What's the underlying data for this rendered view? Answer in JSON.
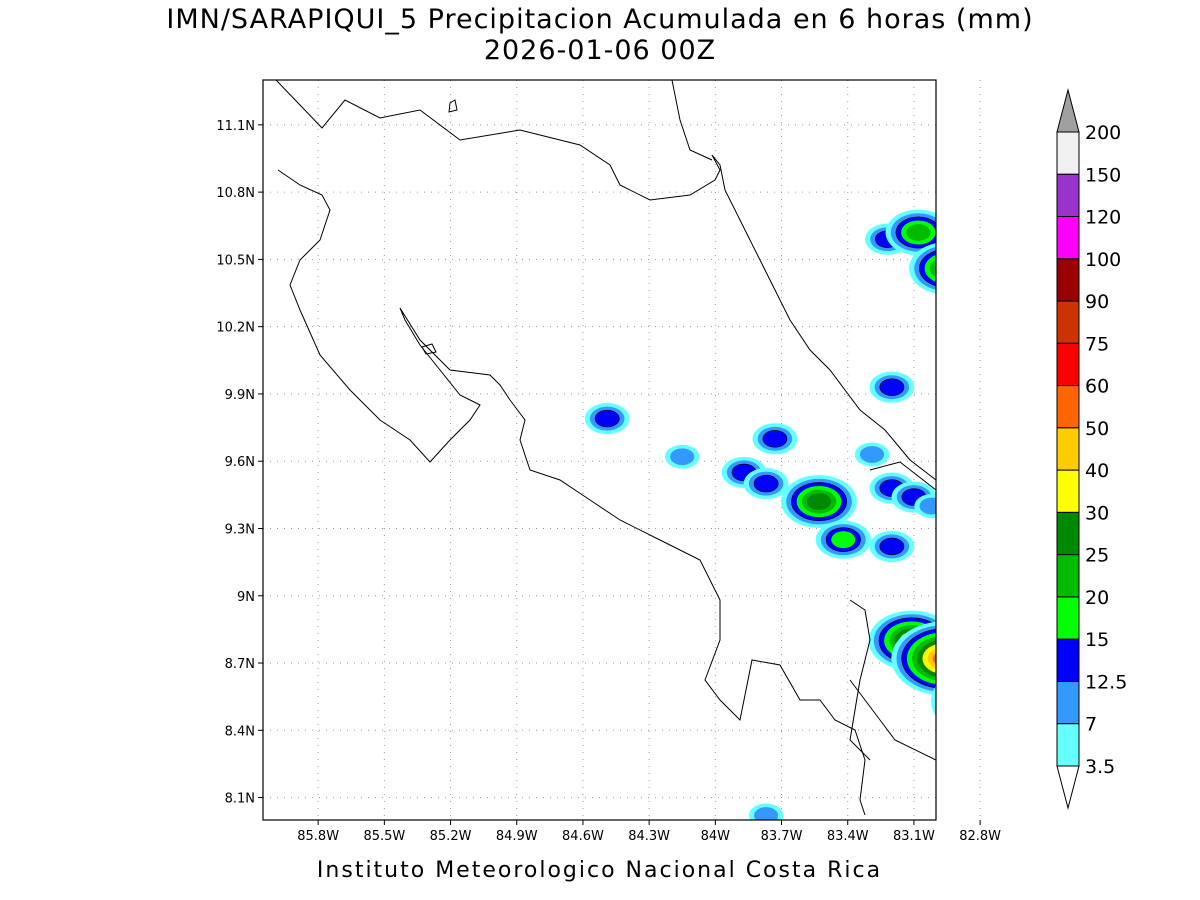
{
  "map": {
    "title": "IMN/SARAPIQUI_5 Precipitacion Acumulada en 6 horas (mm)",
    "subtitle": "2026-01-06 00Z",
    "footer": "Instituto Meteorologico Nacional Costa Rica",
    "lon_ticks": [
      "85.8W",
      "85.5W",
      "85.2W",
      "84.9W",
      "84.6W",
      "84.3W",
      "84W",
      "83.7W",
      "83.4W",
      "83.1W",
      "82.8W"
    ],
    "lat_ticks": [
      "11.1N",
      "10.8N",
      "10.5N",
      "10.2N",
      "9.9N",
      "9.6N",
      "9.3N",
      "9N",
      "8.7N",
      "8.4N",
      "8.1N"
    ],
    "lon_range": [
      -86.05,
      -83.0
    ],
    "lat_range": [
      8.0,
      11.3
    ],
    "grid": "dotted"
  },
  "legend": {
    "labels": [
      "200",
      "150",
      "120",
      "100",
      "90",
      "75",
      "60",
      "50",
      "40",
      "30",
      "25",
      "20",
      "15",
      "12.5",
      "7",
      "3.5"
    ],
    "colors": [
      "#a0a0a0",
      "#f0f0f0",
      "#9933cc",
      "#ff00ff",
      "#990000",
      "#cc3300",
      "#ff0000",
      "#ff6600",
      "#ffcc00",
      "#ffff00",
      "#008800",
      "#00bb00",
      "#00ff00",
      "#0000ff",
      "#3399ff",
      "#66ffff",
      "#ffffff"
    ]
  },
  "precip_cells": [
    {
      "lon": -83.22,
      "lat": 10.59,
      "level": 3
    },
    {
      "lon": -83.08,
      "lat": 10.62,
      "level": 5
    },
    {
      "lon": -82.95,
      "lat": 10.46,
      "level": 6
    },
    {
      "lon": -82.82,
      "lat": 10.35,
      "level": 4
    },
    {
      "lon": -82.66,
      "lat": 10.29,
      "level": 3
    },
    {
      "lon": -83.2,
      "lat": 9.93,
      "level": 3
    },
    {
      "lon": -84.49,
      "lat": 9.79,
      "level": 3
    },
    {
      "lon": -83.73,
      "lat": 9.7,
      "level": 3
    },
    {
      "lon": -83.87,
      "lat": 9.55,
      "level": 3
    },
    {
      "lon": -83.77,
      "lat": 9.5,
      "level": 3
    },
    {
      "lon": -83.53,
      "lat": 9.42,
      "level": 6
    },
    {
      "lon": -83.42,
      "lat": 9.25,
      "level": 4
    },
    {
      "lon": -83.2,
      "lat": 9.48,
      "level": 3
    },
    {
      "lon": -83.1,
      "lat": 9.44,
      "level": 3
    },
    {
      "lon": -83.02,
      "lat": 9.4,
      "level": 2
    },
    {
      "lon": -83.2,
      "lat": 9.22,
      "level": 3
    },
    {
      "lon": -82.75,
      "lat": 9.26,
      "level": 3
    },
    {
      "lon": -83.11,
      "lat": 8.8,
      "level": 7
    },
    {
      "lon": -82.96,
      "lat": 8.72,
      "level": 9
    },
    {
      "lon": -82.78,
      "lat": 8.53,
      "level": 9
    },
    {
      "lon": -82.64,
      "lat": 8.55,
      "level": 2
    },
    {
      "lon": -82.68,
      "lat": 8.44,
      "level": 2
    },
    {
      "lon": -83.77,
      "lat": 8.02,
      "level": 2
    },
    {
      "lon": -83.29,
      "lat": 9.63,
      "level": 2
    },
    {
      "lon": -84.15,
      "lat": 9.62,
      "level": 2
    }
  ]
}
